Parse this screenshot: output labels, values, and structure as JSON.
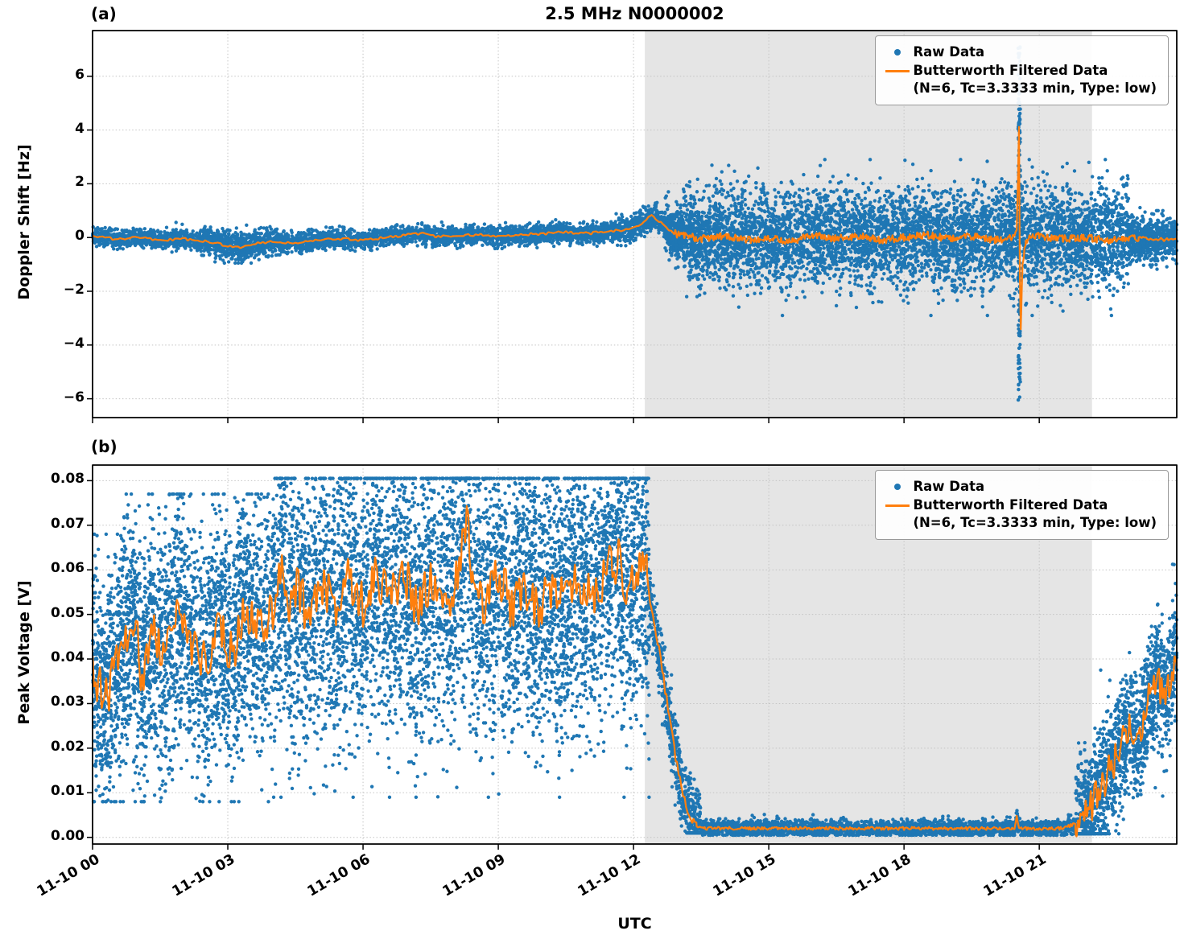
{
  "title": "2.5 MHz N0000002",
  "xlabel": "UTC",
  "panels": {
    "a": {
      "tag": "(a)",
      "ylabel": "Doppler Shift [Hz]",
      "legend": {
        "raw": "Raw Data",
        "filtered": "Butterworth Filtered Data",
        "filtered_params": "(N=6, Tc=3.3333 min, Type: low)"
      }
    },
    "b": {
      "tag": "(b)",
      "ylabel": "Peak Voltage [V]",
      "legend": {
        "raw": "Raw Data",
        "filtered": "Butterworth Filtered Data",
        "filtered_params": "(N=6, Tc=3.3333 min, Type: low)"
      }
    }
  },
  "colors": {
    "raw": "#1f77b4",
    "filtered": "#ff7f0e",
    "shade": "#e5e5e5",
    "grid": "#c4c4c4",
    "spine": "#000000"
  },
  "chart_data": [
    {
      "type": "scatter",
      "panel": "a",
      "title": "2.5 MHz N0000002",
      "ylabel": "Doppler Shift [Hz]",
      "ylim": [
        -6.7,
        7.7
      ],
      "xlim_hours": [
        0,
        24.05
      ],
      "x_origin_label": "11-10 00:00 UTC",
      "grid": true,
      "legend_position": "upper right",
      "xticklabels_visible": false,
      "yticks": {
        "values": [
          6,
          4,
          2,
          0,
          -2,
          -4,
          -6
        ],
        "labels": [
          "6",
          "4",
          "2",
          "0",
          "−2",
          "−4",
          "−6"
        ]
      },
      "xticks": {
        "hours": [
          0,
          3,
          6,
          9,
          12,
          15,
          18,
          21
        ],
        "labels": [
          "11-10 00",
          "11-10 03",
          "11-10 06",
          "11-10 09",
          "11-10 12",
          "11-10 15",
          "11-10 18",
          "11-10 21"
        ]
      },
      "shaded_region_hours": [
        12.25,
        22.17
      ],
      "series": [
        {
          "name": "Raw Data",
          "kind": "scatter",
          "color": "#1f77b4",
          "seed": 42,
          "segments": [
            {
              "t0": 0.0,
              "t1": 2.4,
              "center": "filtered",
              "spread": 0.16,
              "count": 900,
              "clamp": [
                -0.75,
                0.6
              ]
            },
            {
              "t0": 2.4,
              "t1": 4.2,
              "center": "filtered",
              "spread": 0.26,
              "count": 750,
              "clamp": [
                -0.95,
                0.5
              ]
            },
            {
              "t0": 4.2,
              "t1": 11.6,
              "center": "filtered",
              "spread": 0.17,
              "count": 2800,
              "clamp": [
                -0.6,
                0.8
              ]
            },
            {
              "t0": 11.6,
              "t1": 12.7,
              "center": "filtered",
              "spread": 0.24,
              "count": 420,
              "clamp": [
                -0.5,
                1.3
              ]
            },
            {
              "t0": 12.7,
              "t1": 13.1,
              "center": "filtered",
              "spread": 0.5,
              "count": 300,
              "clamp": [
                -1.6,
                1.7
              ]
            },
            {
              "t0": 13.1,
              "t1": 13.7,
              "center": "filtered",
              "spread": 0.8,
              "count": 420,
              "clamp": [
                -2.2,
                2.2
              ]
            },
            {
              "t0": 13.7,
              "t1": 23.0,
              "center": 0,
              "spread": 0.9,
              "count": 5200,
              "clamp": [
                -2.9,
                2.9
              ]
            },
            {
              "t0": 23.0,
              "t1": 24.05,
              "center": -0.05,
              "spread": 0.38,
              "count": 620,
              "clamp": [
                -1.3,
                1.2
              ]
            }
          ],
          "spikes": [
            {
              "t0": 20.53,
              "t1": 20.58,
              "vmin": -6.05,
              "vmax": 7.1,
              "count": 150
            }
          ]
        },
        {
          "name": "Butterworth Filtered Data (N=6, Tc=3.3333 min, Type: low)",
          "kind": "line",
          "color": "#ff7f0e",
          "seed": 7,
          "anchors": [
            [
              0,
              0.05
            ],
            [
              0.5,
              -0.05
            ],
            [
              1,
              0
            ],
            [
              1.5,
              -0.1
            ],
            [
              2,
              -0.05
            ],
            [
              2.5,
              -0.15
            ],
            [
              3,
              -0.3
            ],
            [
              3.3,
              -0.35
            ],
            [
              3.7,
              -0.2
            ],
            [
              4,
              -0.15
            ],
            [
              4.5,
              -0.2
            ],
            [
              5,
              -0.1
            ],
            [
              5.5,
              -0.05
            ],
            [
              6,
              -0.1
            ],
            [
              6.5,
              0
            ],
            [
              7,
              0.1
            ],
            [
              7.3,
              0.15
            ],
            [
              7.6,
              0.05
            ],
            [
              8,
              0.05
            ],
            [
              8.5,
              0.1
            ],
            [
              9,
              0.05
            ],
            [
              9.5,
              0.1
            ],
            [
              10,
              0.15
            ],
            [
              10.5,
              0.2
            ],
            [
              11,
              0.15
            ],
            [
              11.5,
              0.25
            ],
            [
              11.9,
              0.3
            ],
            [
              12.2,
              0.55
            ],
            [
              12.4,
              0.85
            ],
            [
              12.6,
              0.55
            ],
            [
              12.8,
              0.25
            ],
            [
              13,
              0.1
            ],
            [
              13.5,
              -0.05
            ],
            [
              14,
              0.05
            ],
            [
              14.5,
              -0.1
            ],
            [
              15,
              0
            ],
            [
              15.5,
              -0.15
            ],
            [
              16,
              0.1
            ],
            [
              16.5,
              -0.05
            ],
            [
              17,
              0.05
            ],
            [
              17.5,
              -0.1
            ],
            [
              18,
              0
            ],
            [
              18.5,
              0.1
            ],
            [
              19,
              -0.05
            ],
            [
              19.5,
              0.05
            ],
            [
              20,
              -0.1
            ],
            [
              20.4,
              0
            ],
            [
              20.5,
              0.3
            ],
            [
              20.53,
              2.5
            ],
            [
              20.55,
              4.2
            ],
            [
              20.57,
              -1.5
            ],
            [
              20.59,
              -3.35
            ],
            [
              20.63,
              -1
            ],
            [
              20.7,
              -0.2
            ],
            [
              20.8,
              0
            ],
            [
              21,
              0.05
            ],
            [
              21.5,
              -0.05
            ],
            [
              22,
              0
            ],
            [
              22.5,
              -0.1
            ],
            [
              23,
              0
            ],
            [
              23.5,
              -0.05
            ],
            [
              24.05,
              -0.1
            ]
          ],
          "noise": [
            {
              "t0": 0,
              "t1": 12.1,
              "amp": 0.045,
              "freq": 18
            },
            {
              "t0": 12.1,
              "t1": 12.9,
              "amp": 0.05,
              "freq": 18
            },
            {
              "t0": 12.9,
              "t1": 23.2,
              "amp": 0.14,
              "freq": 55
            },
            {
              "t0": 23.2,
              "t1": 24.05,
              "amp": 0.06,
              "freq": 30
            }
          ]
        }
      ]
    },
    {
      "type": "scatter",
      "panel": "b",
      "ylabel": "Peak Voltage [V]",
      "xlabel": "UTC",
      "ylim": [
        -0.0015,
        0.0835
      ],
      "xlim_hours": [
        0,
        24.05
      ],
      "grid": true,
      "legend_position": "upper right",
      "xticklabels_visible": true,
      "yticks": {
        "values": [
          0.08,
          0.07,
          0.06,
          0.05,
          0.04,
          0.03,
          0.02,
          0.01,
          0.0
        ],
        "labels": [
          "0.08",
          "0.07",
          "0.06",
          "0.05",
          "0.04",
          "0.03",
          "0.02",
          "0.01",
          "0.00"
        ]
      },
      "xticks": {
        "hours": [
          0,
          3,
          6,
          9,
          12,
          15,
          18,
          21
        ],
        "labels": [
          "11-10 00",
          "11-10 03",
          "11-10 06",
          "11-10 09",
          "11-10 12",
          "11-10 15",
          "11-10 18",
          "11-10 21"
        ]
      },
      "shaded_region_hours": [
        12.25,
        22.17
      ],
      "series": [
        {
          "name": "Raw Data",
          "kind": "scatter",
          "color": "#1f77b4",
          "seed": 1337,
          "segments": [
            {
              "t0": 0.0,
              "t1": 0.6,
              "center": "filtered",
              "spread": 0.013,
              "count": 450,
              "clamp": [
                0.008,
                0.068
              ]
            },
            {
              "t0": 0.6,
              "t1": 4.0,
              "center": "filtered",
              "spread": 0.014,
              "count": 2400,
              "clamp": [
                0.008,
                0.077
              ]
            },
            {
              "t0": 4.0,
              "t1": 12.35,
              "center": "filtered",
              "spread": 0.016,
              "count": 5800,
              "clamp": [
                0.009,
                0.0805
              ]
            },
            {
              "t0": 12.35,
              "t1": 13.5,
              "center": "filtered",
              "spread": 0.004,
              "count": 650,
              "clamp": [
                0.001,
                0.075
              ]
            },
            {
              "t0": 13.5,
              "t1": 21.8,
              "center": "filtered",
              "spread": 0.0009,
              "count": 3000,
              "clamp": [
                0.0005,
                0.006
              ]
            },
            {
              "t0": 21.8,
              "t1": 24.05,
              "center": "filtered",
              "spread": 0.007,
              "count": 1500,
              "clamp": [
                0.0008,
                0.072
              ]
            }
          ],
          "spikes": []
        },
        {
          "name": "Butterworth Filtered Data (N=6, Tc=3.3333 min, Type: low)",
          "kind": "line",
          "color": "#ff7f0e",
          "seed": 11,
          "anchors": [
            [
              0,
              0.037
            ],
            [
              0.3,
              0.031
            ],
            [
              0.6,
              0.042
            ],
            [
              0.9,
              0.05
            ],
            [
              1.1,
              0.036
            ],
            [
              1.3,
              0.046
            ],
            [
              1.6,
              0.04
            ],
            [
              1.9,
              0.051
            ],
            [
              2.2,
              0.043
            ],
            [
              2.5,
              0.038
            ],
            [
              2.8,
              0.048
            ],
            [
              3.1,
              0.041
            ],
            [
              3.4,
              0.052
            ],
            [
              3.7,
              0.046
            ],
            [
              4,
              0.05
            ],
            [
              4.2,
              0.062
            ],
            [
              4.35,
              0.049
            ],
            [
              4.5,
              0.056
            ],
            [
              4.8,
              0.05
            ],
            [
              5.1,
              0.057
            ],
            [
              5.4,
              0.05
            ],
            [
              5.7,
              0.058
            ],
            [
              6,
              0.052
            ],
            [
              6.3,
              0.06
            ],
            [
              6.6,
              0.053
            ],
            [
              6.9,
              0.059
            ],
            [
              7.2,
              0.051
            ],
            [
              7.5,
              0.057
            ],
            [
              7.8,
              0.052
            ],
            [
              8.1,
              0.058
            ],
            [
              8.3,
              0.074
            ],
            [
              8.45,
              0.055
            ],
            [
              8.7,
              0.052
            ],
            [
              9,
              0.058
            ],
            [
              9.3,
              0.052
            ],
            [
              9.6,
              0.057
            ],
            [
              9.9,
              0.051
            ],
            [
              10.2,
              0.057
            ],
            [
              10.5,
              0.052
            ],
            [
              10.8,
              0.058
            ],
            [
              11.1,
              0.053
            ],
            [
              11.4,
              0.06
            ],
            [
              11.7,
              0.062
            ],
            [
              11.9,
              0.055
            ],
            [
              12.1,
              0.06
            ],
            [
              12.3,
              0.058
            ],
            [
              12.45,
              0.048
            ],
            [
              12.6,
              0.04
            ],
            [
              12.75,
              0.03
            ],
            [
              12.9,
              0.02
            ],
            [
              13.05,
              0.012
            ],
            [
              13.2,
              0.006
            ],
            [
              13.35,
              0.003
            ],
            [
              13.5,
              0.002
            ],
            [
              14,
              0.002
            ],
            [
              15,
              0.002
            ],
            [
              16,
              0.002
            ],
            [
              17,
              0.002
            ],
            [
              18,
              0.002
            ],
            [
              19,
              0.002
            ],
            [
              20,
              0.002
            ],
            [
              20.45,
              0.002
            ],
            [
              20.5,
              0.0045
            ],
            [
              20.55,
              0.002
            ],
            [
              21,
              0.002
            ],
            [
              21.5,
              0.002
            ],
            [
              21.8,
              0.003
            ],
            [
              22,
              0.005
            ],
            [
              22.2,
              0.008
            ],
            [
              22.4,
              0.012
            ],
            [
              22.6,
              0.016
            ],
            [
              22.8,
              0.02
            ],
            [
              23,
              0.025
            ],
            [
              23.2,
              0.022
            ],
            [
              23.4,
              0.03
            ],
            [
              23.6,
              0.035
            ],
            [
              23.8,
              0.032
            ],
            [
              24.05,
              0.042
            ]
          ],
          "noise": [
            {
              "t0": 0,
              "t1": 12.3,
              "amp": 0.0055,
              "freq": 30
            },
            {
              "t0": 12.3,
              "t1": 13.4,
              "amp": 0.001,
              "freq": 30
            },
            {
              "t0": 13.4,
              "t1": 21.8,
              "amp": 0.00035,
              "freq": 40
            },
            {
              "t0": 21.8,
              "t1": 24.05,
              "amp": 0.004,
              "freq": 35
            }
          ]
        }
      ]
    }
  ]
}
